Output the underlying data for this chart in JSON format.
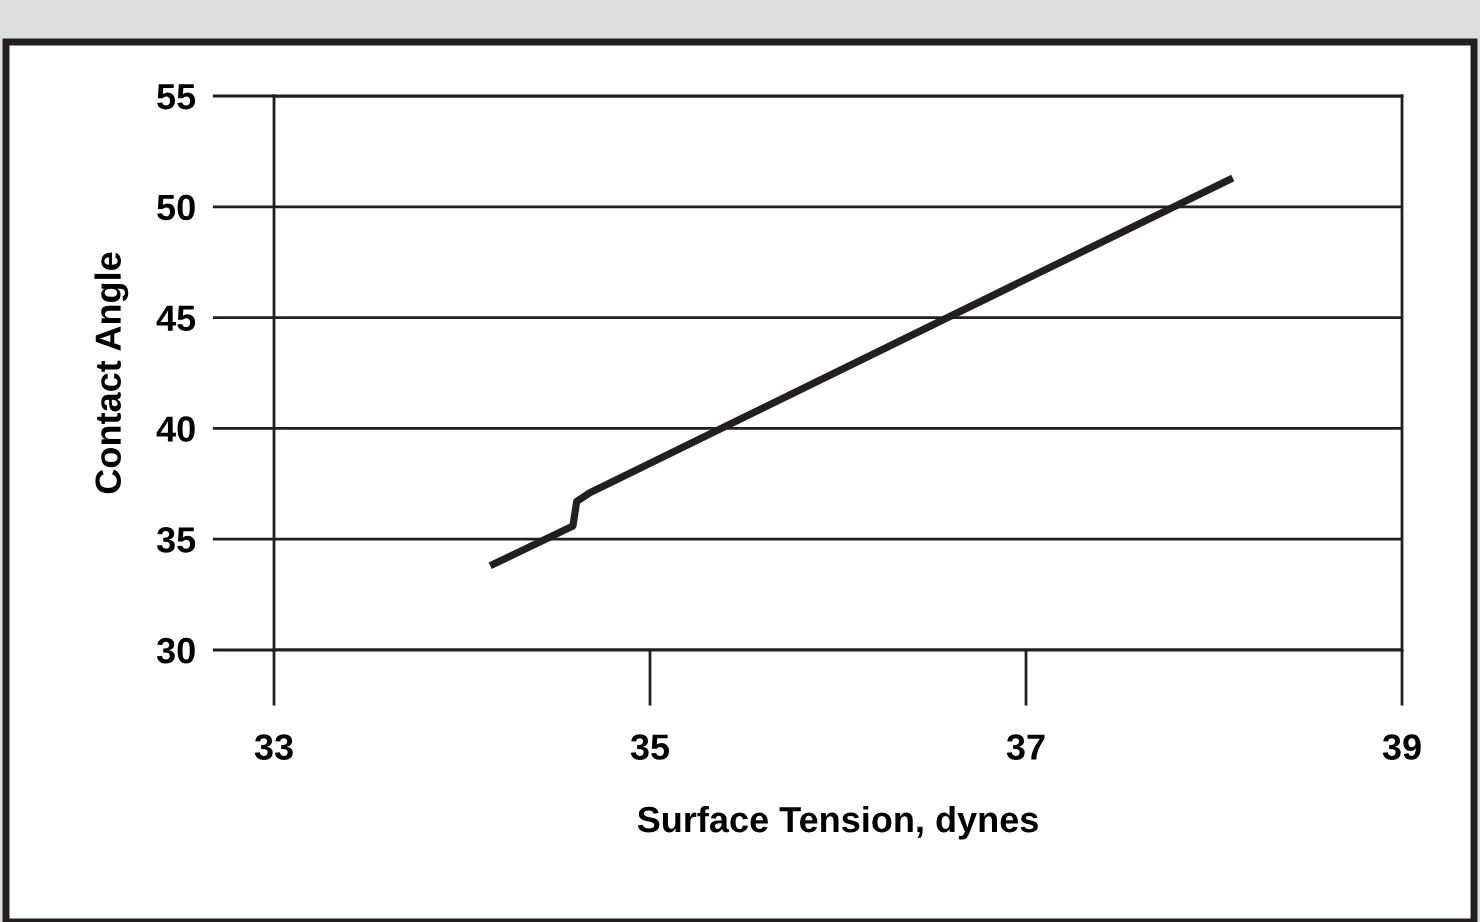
{
  "chart_data": {
    "type": "line",
    "xlabel": "Surface Tension, dynes",
    "ylabel": "Contact Angle",
    "series": [
      {
        "color": "#231f20",
        "x": [
          34.15,
          34.59,
          34.61,
          34.68,
          38.1
        ],
        "values": [
          33.8,
          35.6,
          36.7,
          37.1,
          51.3
        ]
      }
    ],
    "xlim": [
      33,
      39
    ],
    "xticks": [
      33,
      35,
      37,
      39
    ],
    "ylim": [
      30,
      55
    ],
    "yticks": [
      30,
      35,
      40,
      45,
      50,
      55
    ],
    "grid": "y",
    "line_style": "solid",
    "marker": "none"
  }
}
